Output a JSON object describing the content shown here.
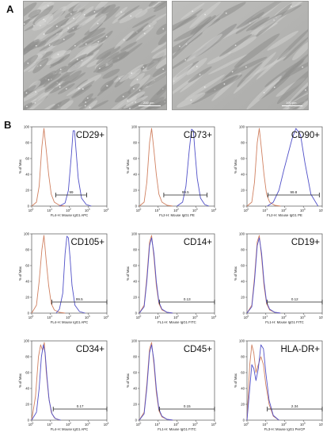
{
  "figure": {
    "panel_a_label": "A",
    "panel_b_label": "B",
    "micrographs": [
      {
        "scale_label": "200 μm"
      },
      {
        "scale_label": "100 μm"
      }
    ]
  },
  "y_axis_label": "% of Max",
  "y_ticks": [
    "0",
    "20",
    "40",
    "60",
    "80",
    "100"
  ],
  "x_ticks": [
    {
      "base": "10",
      "exp": "0"
    },
    {
      "base": "10",
      "exp": "1"
    },
    {
      "base": "10",
      "exp": "2"
    },
    {
      "base": "10",
      "exp": "3"
    },
    {
      "base": "10",
      "exp": "4"
    }
  ],
  "colors": {
    "isotype": "#d08060",
    "marker": "#5050c8",
    "gate": "#222222"
  },
  "chart_data": [
    {
      "type": "line",
      "marker": "CD29+",
      "xlabel": "FL4-H: Mouse IgG1 APC",
      "ylabel": "% of Max",
      "gate_value": "99",
      "gate_range": [
        19,
        850
      ],
      "xscale": "log",
      "xlim": [
        1,
        10000
      ],
      "ylim": [
        0,
        100
      ],
      "series": [
        {
          "x": [
            1,
            1.8,
            2.5,
            3.5,
            4.5,
            6,
            8,
            11,
            16,
            30,
            60
          ],
          "y": [
            0,
            5,
            25,
            75,
            98,
            70,
            40,
            15,
            5,
            1,
            0
          ]
        },
        {
          "x": [
            30,
            60,
            90,
            130,
            160,
            190,
            230,
            300,
            450,
            800,
            1500
          ],
          "y": [
            0,
            4,
            20,
            65,
            95,
            95,
            70,
            35,
            10,
            2,
            0
          ]
        }
      ]
    },
    {
      "type": "line",
      "marker": "CD73+",
      "xlabel": "FL2-H: Mouse IgG1 PE",
      "ylabel": "% of Max",
      "gate_value": "99.5",
      "gate_range": [
        20,
        4000
      ],
      "xscale": "log",
      "xlim": [
        1,
        10000
      ],
      "ylim": [
        0,
        100
      ],
      "series": [
        {
          "x": [
            1,
            1.8,
            2.5,
            3.5,
            4.5,
            6,
            8,
            11,
            16,
            30,
            60
          ],
          "y": [
            0,
            5,
            30,
            80,
            98,
            70,
            40,
            15,
            5,
            1,
            0
          ]
        },
        {
          "x": [
            100,
            200,
            300,
            450,
            600,
            750,
            900,
            1200,
            1800,
            3000,
            5000
          ],
          "y": [
            0,
            5,
            25,
            70,
            97,
            95,
            70,
            35,
            10,
            2,
            0
          ]
        }
      ]
    },
    {
      "type": "line",
      "marker": "CD90+",
      "xlabel": "FL2-H: Mouse IgG1 PE",
      "ylabel": "% of Max",
      "gate_value": "99.8",
      "gate_range": [
        13,
        7000
      ],
      "xscale": "log",
      "xlim": [
        1,
        10000
      ],
      "ylim": [
        0,
        100
      ],
      "series": [
        {
          "x": [
            1,
            1.8,
            2.5,
            3.5,
            4.5,
            6,
            8,
            11,
            16,
            30,
            60
          ],
          "y": [
            0,
            5,
            30,
            80,
            98,
            70,
            40,
            15,
            5,
            1,
            0
          ]
        },
        {
          "x": [
            12,
            25,
            50,
            90,
            150,
            250,
            400,
            700,
            1200,
            2500,
            6000
          ],
          "y": [
            0,
            5,
            20,
            45,
            65,
            85,
            98,
            90,
            55,
            15,
            0
          ]
        }
      ]
    },
    {
      "type": "line",
      "marker": "CD105+",
      "xlabel": "FL4-H: Mouse IgG1 APC",
      "ylabel": "% of Max",
      "gate_value": "99.5",
      "gate_range": [
        12,
        10000
      ],
      "xscale": "log",
      "xlim": [
        1,
        10000
      ],
      "ylim": [
        0,
        100
      ],
      "series": [
        {
          "x": [
            1,
            1.8,
            2.5,
            3.5,
            4.5,
            6,
            8,
            11,
            16,
            30,
            60
          ],
          "y": [
            0,
            10,
            40,
            80,
            98,
            65,
            35,
            12,
            4,
            1,
            0
          ]
        },
        {
          "x": [
            20,
            30,
            45,
            60,
            75,
            90,
            110,
            140,
            200,
            350,
            700
          ],
          "y": [
            0,
            5,
            25,
            75,
            97,
            95,
            70,
            35,
            10,
            2,
            0
          ]
        }
      ]
    },
    {
      "type": "line",
      "marker": "CD14+",
      "xlabel": "FL1-H: Mouse IgG1 FITC",
      "ylabel": "% of Max",
      "gate_value": "0.13",
      "gate_range": [
        12,
        10000
      ],
      "xscale": "log",
      "xlim": [
        1,
        10000
      ],
      "ylim": [
        0,
        100
      ],
      "series": [
        {
          "x": [
            1,
            1.8,
            2.5,
            3.5,
            4.5,
            6,
            8,
            11,
            16,
            30,
            60
          ],
          "y": [
            0,
            10,
            45,
            90,
            98,
            70,
            35,
            12,
            4,
            1,
            0
          ]
        },
        {
          "x": [
            1,
            1.8,
            2.5,
            3.5,
            4.5,
            6,
            8,
            11,
            16,
            30,
            60
          ],
          "y": [
            0,
            8,
            40,
            85,
            95,
            75,
            40,
            14,
            5,
            1,
            0
          ]
        }
      ]
    },
    {
      "type": "line",
      "marker": "CD19+",
      "xlabel": "FL1-H: Mouse IgG1 FITC",
      "ylabel": "% of Max",
      "gate_value": "0.12",
      "gate_range": [
        12,
        10000
      ],
      "xscale": "log",
      "xlim": [
        1,
        10000
      ],
      "ylim": [
        0,
        100
      ],
      "series": [
        {
          "x": [
            1,
            1.8,
            2.5,
            3.5,
            4.5,
            6,
            8,
            11,
            16,
            30,
            60
          ],
          "y": [
            0,
            10,
            45,
            90,
            98,
            70,
            35,
            12,
            4,
            1,
            0
          ]
        },
        {
          "x": [
            1,
            1.8,
            2.5,
            3.5,
            4.5,
            6,
            8,
            11,
            16,
            30,
            60
          ],
          "y": [
            0,
            8,
            40,
            85,
            95,
            75,
            40,
            14,
            5,
            1,
            0
          ]
        }
      ]
    },
    {
      "type": "line",
      "marker": "CD34+",
      "xlabel": "FL4-H: Mouse IgG1 APC",
      "ylabel": "% of Max",
      "gate_value": "0.17",
      "gate_range": [
        14,
        10000
      ],
      "xscale": "log",
      "xlim": [
        1,
        10000
      ],
      "ylim": [
        0,
        100
      ],
      "series": [
        {
          "x": [
            1,
            1.6,
            2.3,
            3,
            3.8,
            4.7,
            6,
            8,
            11,
            16,
            30
          ],
          "y": [
            0,
            30,
            80,
            95,
            88,
            98,
            60,
            30,
            10,
            3,
            0
          ]
        },
        {
          "x": [
            1,
            1.8,
            2.5,
            3.3,
            4.2,
            5.2,
            6.5,
            8.5,
            12,
            18,
            35
          ],
          "y": [
            0,
            10,
            40,
            80,
            95,
            85,
            55,
            25,
            8,
            2,
            0
          ]
        }
      ]
    },
    {
      "type": "line",
      "marker": "CD45+",
      "xlabel": "FL1-H: Mouse IgG1 FITC",
      "ylabel": "% of Max",
      "gate_value": "0.15",
      "gate_range": [
        12,
        10000
      ],
      "xscale": "log",
      "xlim": [
        1,
        10000
      ],
      "ylim": [
        0,
        100
      ],
      "series": [
        {
          "x": [
            1,
            1.8,
            2.5,
            3.5,
            4.5,
            6,
            8,
            11,
            16,
            30,
            60
          ],
          "y": [
            0,
            10,
            45,
            90,
            98,
            70,
            35,
            12,
            4,
            1,
            0
          ]
        },
        {
          "x": [
            1,
            1.8,
            2.5,
            3.5,
            4.5,
            6,
            8,
            11,
            16,
            30,
            60
          ],
          "y": [
            0,
            8,
            40,
            85,
            95,
            75,
            40,
            14,
            5,
            1,
            0
          ]
        }
      ]
    },
    {
      "type": "line",
      "marker": "HLA-DR+",
      "xlabel": "FL3-H: Mouse IgG1 PerCP",
      "ylabel": "% of Max",
      "gate_value": "2.34",
      "gate_range": [
        12,
        10000
      ],
      "xscale": "log",
      "xlim": [
        1,
        10000
      ],
      "ylim": [
        0,
        100
      ],
      "series": [
        {
          "x": [
            1,
            1.4,
            1.8,
            2.3,
            3,
            4,
            5.5,
            7.5,
            10,
            15,
            25,
            50
          ],
          "y": [
            0,
            70,
            95,
            85,
            60,
            70,
            80,
            70,
            45,
            20,
            5,
            0
          ]
        },
        {
          "x": [
            1,
            1.4,
            1.8,
            2.3,
            3,
            4,
            5.5,
            7.5,
            10,
            15,
            25,
            50
          ],
          "y": [
            0,
            40,
            70,
            65,
            50,
            65,
            95,
            90,
            60,
            25,
            6,
            0
          ]
        }
      ]
    }
  ]
}
